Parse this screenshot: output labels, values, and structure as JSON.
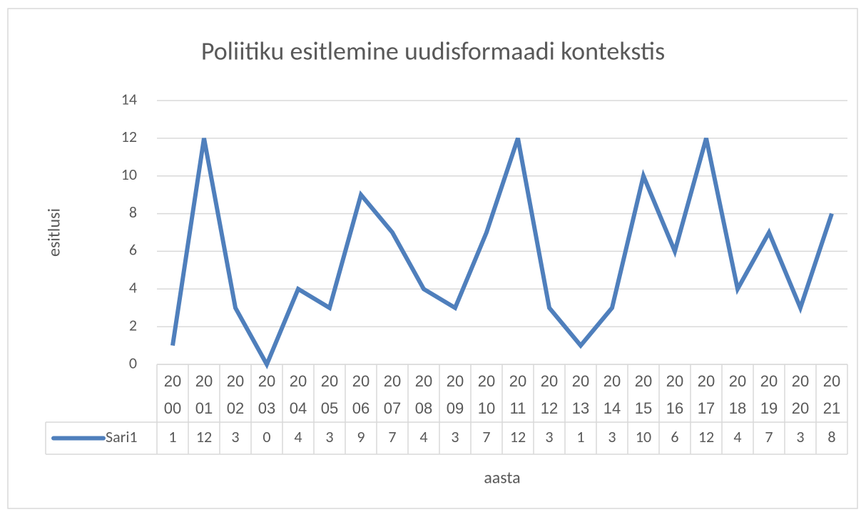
{
  "chart_data": {
    "type": "line",
    "title": "Poliitiku esitlemine uudisformaadi kontekstis",
    "x_label": "aasta",
    "y_label": "esitlusi",
    "categories": [
      "2000",
      "2001",
      "2002",
      "2003",
      "2004",
      "2005",
      "2006",
      "2007",
      "2008",
      "2009",
      "2010",
      "2011",
      "2012",
      "2013",
      "2014",
      "2015",
      "2016",
      "2017",
      "2018",
      "2019",
      "2020",
      "2021"
    ],
    "series": [
      {
        "name": "Sari1",
        "color": "#4f7fbc",
        "values": [
          1,
          12,
          3,
          0,
          4,
          3,
          9,
          7,
          4,
          3,
          7,
          12,
          3,
          1,
          3,
          10,
          6,
          12,
          4,
          7,
          3,
          8
        ]
      }
    ],
    "ylim": [
      0,
      14
    ],
    "yticks": [
      0,
      2,
      4,
      6,
      8,
      10,
      12,
      14
    ],
    "grid": true,
    "data_table": true
  }
}
